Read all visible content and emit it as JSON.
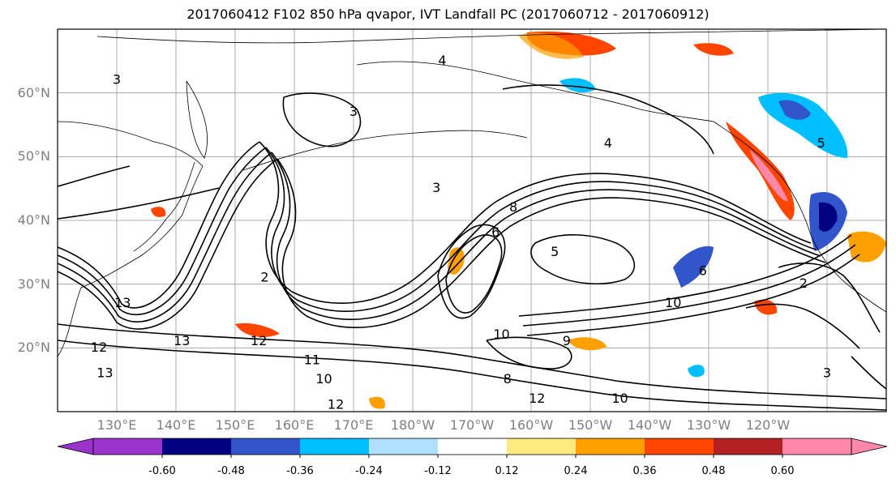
{
  "title": "2017060412 F102 850 hPa qvapor, IVT Landfall PC (2017060712 - 2017060912)",
  "lat_labels": [
    "60°N",
    "50°N",
    "40°N",
    "30°N",
    "20°N"
  ],
  "lon_labels": [
    "130°E",
    "140°E",
    "150°E",
    "160°E",
    "170°E",
    "180°W",
    "170°W",
    "160°W",
    "150°W",
    "140°W",
    "130°W",
    "120°W"
  ],
  "colorbar": {
    "colors": [
      "#9933cc",
      "#000080",
      "#3355cc",
      "#00bfff",
      "#b0e0ff",
      "#ffffff",
      "#ffea80",
      "#ffa000",
      "#ff4500",
      "#b22222",
      "#ff88aa"
    ],
    "tick_labels": [
      "-0.60",
      "-0.48",
      "-0.36",
      "-0.24",
      "-0.12",
      "0.12",
      "0.24",
      "0.36",
      "0.48",
      "0.60"
    ]
  },
  "contour_labels": [
    {
      "text": "4",
      "lon": 185,
      "lat": 65
    },
    {
      "text": "3",
      "lon": 130,
      "lat": 62
    },
    {
      "text": "3",
      "lon": 170,
      "lat": 57
    },
    {
      "text": "4",
      "lon": 213,
      "lat": 52
    },
    {
      "text": "3",
      "lon": 184,
      "lat": 45
    },
    {
      "text": "8",
      "lon": 197,
      "lat": 42
    },
    {
      "text": "6",
      "lon": 194,
      "lat": 38
    },
    {
      "text": "5",
      "lon": 204,
      "lat": 35
    },
    {
      "text": "6",
      "lon": 229,
      "lat": 32
    },
    {
      "text": "2",
      "lon": 155,
      "lat": 31
    },
    {
      "text": "10",
      "lon": 224,
      "lat": 27
    },
    {
      "text": "13",
      "lon": 131,
      "lat": 27
    },
    {
      "text": "13",
      "lon": 141,
      "lat": 21
    },
    {
      "text": "12",
      "lon": 154,
      "lat": 21
    },
    {
      "text": "10",
      "lon": 195,
      "lat": 22
    },
    {
      "text": "9",
      "lon": 206,
      "lat": 21
    },
    {
      "text": "11",
      "lon": 163,
      "lat": 18
    },
    {
      "text": "10",
      "lon": 165,
      "lat": 15
    },
    {
      "text": "8",
      "lon": 196,
      "lat": 15
    },
    {
      "text": "12",
      "lon": 127,
      "lat": 20
    },
    {
      "text": "13",
      "lon": 128,
      "lat": 16
    },
    {
      "text": "12",
      "lon": 201,
      "lat": 12
    },
    {
      "text": "10",
      "lon": 215,
      "lat": 12
    },
    {
      "text": "12",
      "lon": 167,
      "lat": 11
    },
    {
      "text": "2",
      "lon": 246,
      "lat": 30
    },
    {
      "text": "5",
      "lon": 249,
      "lat": 52
    },
    {
      "text": "3",
      "lon": 250,
      "lat": 16
    }
  ]
}
